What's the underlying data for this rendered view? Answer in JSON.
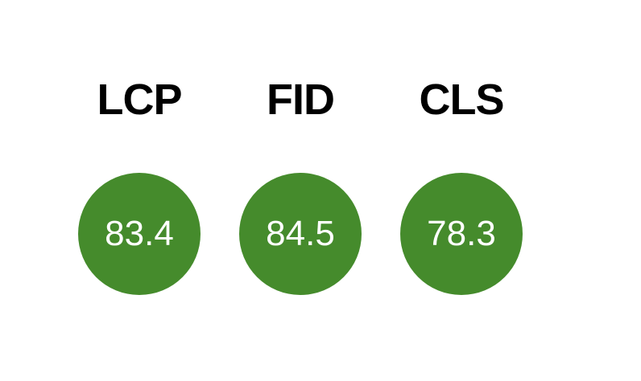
{
  "chart_data": {
    "type": "indicator",
    "title": "",
    "categories": [
      "LCP",
      "FID",
      "CLS"
    ],
    "values": [
      83.4,
      84.5,
      78.3
    ],
    "layout": {
      "orientation": "horizontal-row",
      "columns": 3,
      "grid": false,
      "legend": false
    },
    "colors": {
      "circle_fill": "#458B2C",
      "value_text": "#FFFFFF",
      "label_text": "#000000",
      "background": "#FFFFFF"
    }
  },
  "metrics": [
    {
      "label": "LCP",
      "value": "83.4"
    },
    {
      "label": "FID",
      "value": "84.5"
    },
    {
      "label": "CLS",
      "value": "78.3"
    }
  ]
}
